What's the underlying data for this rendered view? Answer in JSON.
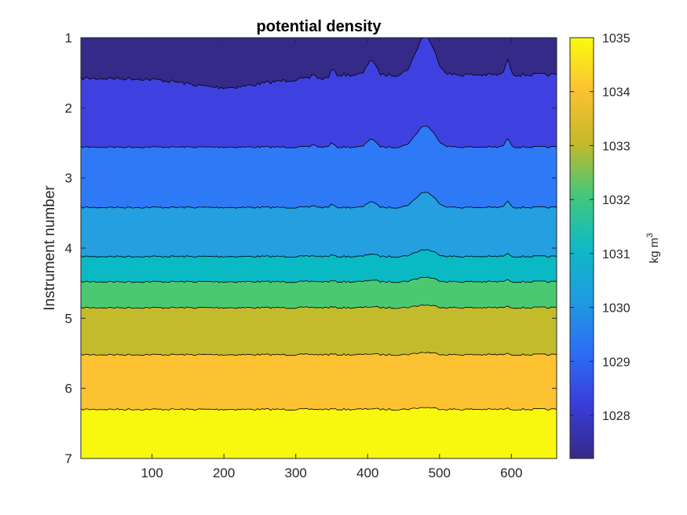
{
  "chart_data": {
    "type": "heatmap",
    "subtype": "filled-contour",
    "title": "potential density",
    "xlabel": "",
    "ylabel": "Instrument number",
    "xlim": [
      1,
      663
    ],
    "ylim": [
      1,
      7
    ],
    "y_reversed": true,
    "x_ticks": [
      100,
      200,
      300,
      400,
      500,
      600
    ],
    "y_ticks": [
      1,
      2,
      3,
      4,
      5,
      6,
      7
    ],
    "colorbar": {
      "label": "kg m",
      "label_superscript": "3",
      "range": [
        1027.2,
        1035
      ],
      "ticks": [
        1028,
        1029,
        1030,
        1031,
        1032,
        1033,
        1034,
        1035
      ],
      "colormap": "parula",
      "colors": [
        "#352a87",
        "#3a3cd9",
        "#2d6df5",
        "#1f9be0",
        "#0fb9c6",
        "#43c87a",
        "#c5b92a",
        "#fbc231",
        "#f9fb0e"
      ]
    },
    "contour_levels": [
      1028,
      1029,
      1030,
      1031,
      1032,
      1033,
      1034,
      1035
    ],
    "band_colors": [
      "#352a87",
      "#3e41e0",
      "#2e79f6",
      "#249fe0",
      "#09bac5",
      "#4ac972",
      "#c4bb2c",
      "#fcc231",
      "#f8f80f"
    ],
    "boundary_base_instrument": [
      1.58,
      2.56,
      3.42,
      4.12,
      4.48,
      4.85,
      5.52,
      6.3
    ],
    "boundary_bump_scale": [
      1.0,
      0.55,
      0.4,
      0.18,
      0.12,
      0.07,
      0.06,
      0.05
    ],
    "disturbances": [
      {
        "x": 480,
        "width": 18,
        "amplitude": 0.55
      },
      {
        "x": 405,
        "width": 8,
        "amplitude": 0.22
      },
      {
        "x": 595,
        "width": 5,
        "amplitude": 0.2
      },
      {
        "x": 350,
        "width": 4,
        "amplitude": 0.1
      },
      {
        "x": 325,
        "width": 4,
        "amplitude": 0.07
      }
    ]
  }
}
